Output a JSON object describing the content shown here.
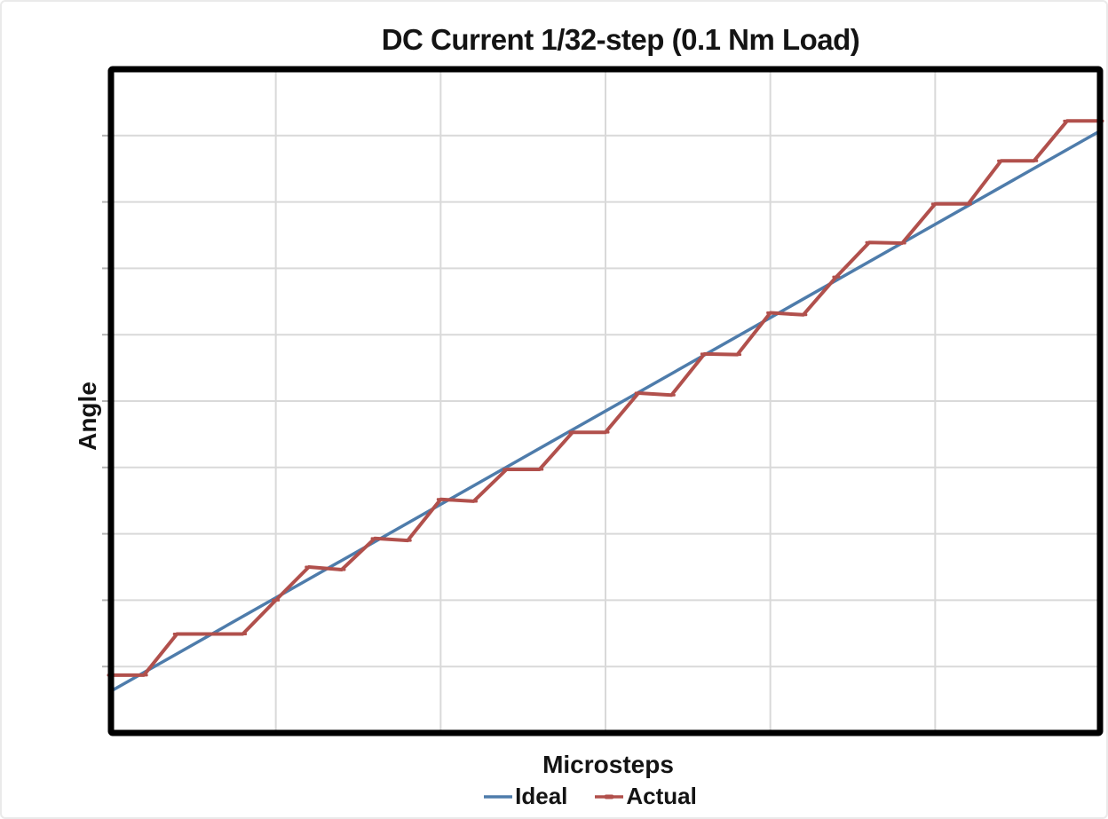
{
  "chart": {
    "title": "DC Current 1/32-step (0.1 Nm Load)",
    "y_axis_label": "Angle",
    "x_axis_label": "Microsteps",
    "legend": [
      {
        "label": "Ideal",
        "color": "#4E7CAB",
        "marker": "line"
      },
      {
        "label": "Actual",
        "color": "#B1504C",
        "marker": "line-with-dash"
      }
    ],
    "colors": {
      "gridline": "#d9d9d9",
      "plot_border": "#000000",
      "axis_tick": "#b3b3b3",
      "title_text": "#141414"
    }
  },
  "chart_data": {
    "type": "line",
    "title": "DC Current 1/32-step (0.1 Nm Load)",
    "xlabel": "Microsteps",
    "ylabel": "Angle",
    "axis_tick_labels_visible": false,
    "xlim": [
      0,
      30
    ],
    "ylim": [
      0,
      10
    ],
    "x_gridline_step": 5,
    "y_gridline_step": 1,
    "grid": true,
    "legend_position": "bottom",
    "series": [
      {
        "name": "Ideal",
        "color": "#4E7CAB",
        "width": 3.5,
        "marker": "none",
        "x": [
          0,
          30
        ],
        "y": [
          0.63,
          9.07
        ]
      },
      {
        "name": "Actual",
        "color": "#B1504C",
        "width": 4,
        "marker": "dash",
        "x": [
          0,
          1,
          2,
          3,
          4,
          5,
          6,
          7,
          8,
          9,
          10,
          11,
          12,
          13,
          14,
          15,
          16,
          17,
          18,
          19,
          20,
          21,
          22,
          23,
          24,
          25,
          26,
          27,
          28,
          29,
          30
        ],
        "y": [
          0.87,
          0.87,
          1.49,
          1.49,
          1.49,
          2.0,
          2.5,
          2.46,
          2.93,
          2.9,
          3.52,
          3.49,
          3.97,
          3.97,
          4.53,
          4.53,
          5.12,
          5.09,
          5.71,
          5.7,
          6.33,
          6.3,
          6.87,
          7.39,
          7.38,
          7.97,
          7.97,
          8.62,
          8.62,
          9.22,
          9.22
        ]
      }
    ]
  }
}
